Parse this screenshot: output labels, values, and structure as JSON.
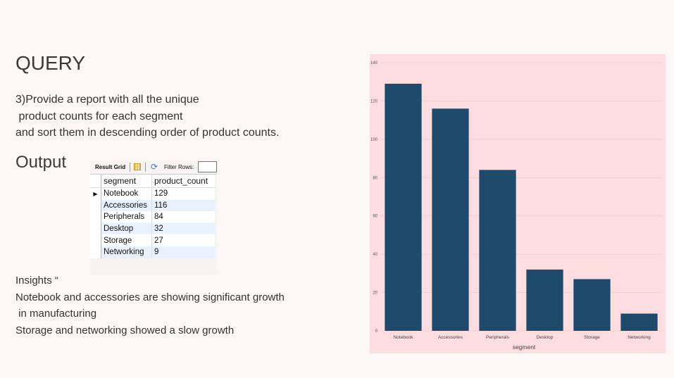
{
  "slide": {
    "title": "QUERY",
    "query_lines": [
      "3)Provide a report with all the unique",
      " product counts for each segment",
      "and sort them in descending order of product counts."
    ],
    "output_label": "Output",
    "insights_lines": [
      "Insights “",
      "Notebook and accessories are showing significant growth",
      " in manufacturing",
      "Storage and networking showed a slow growth"
    ]
  },
  "result_grid": {
    "toolbar_label": "Result Grid",
    "filter_label": "Filter Rows:",
    "filter_value": "",
    "columns": [
      "segment",
      "product_count"
    ],
    "rows": [
      [
        "Notebook",
        "129"
      ],
      [
        "Accessories",
        "116"
      ],
      [
        "Peripherals",
        "84"
      ],
      [
        "Desktop",
        "32"
      ],
      [
        "Storage",
        "27"
      ],
      [
        "Networking",
        "9"
      ]
    ],
    "current_row_marker": "▶"
  },
  "chart_data": {
    "type": "bar",
    "categories": [
      "Notebook",
      "Accessories",
      "Peripherals",
      "Desktop",
      "Storage",
      "Networking"
    ],
    "values": [
      129,
      116,
      84,
      32,
      27,
      9
    ],
    "xlabel": "segment",
    "ylabel": "",
    "ylim": [
      0,
      140
    ],
    "yticks": [
      0,
      20,
      40,
      60,
      80,
      100,
      120,
      140
    ],
    "grid": true,
    "bar_color": "#1e4a6b",
    "background_color": "#fddde0"
  }
}
